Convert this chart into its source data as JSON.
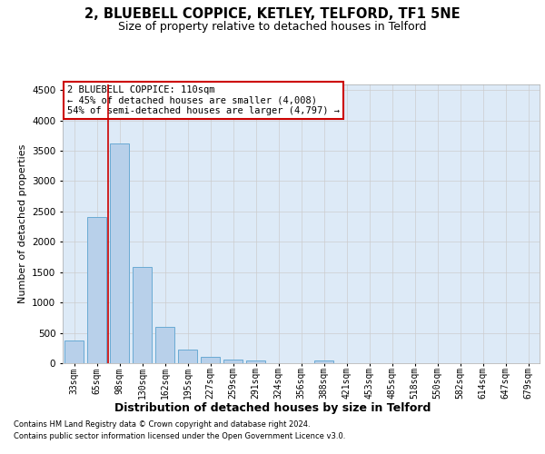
{
  "title_line1": "2, BLUEBELL COPPICE, KETLEY, TELFORD, TF1 5NE",
  "title_line2": "Size of property relative to detached houses in Telford",
  "xlabel": "Distribution of detached houses by size in Telford",
  "ylabel": "Number of detached properties",
  "categories": [
    "33sqm",
    "65sqm",
    "98sqm",
    "130sqm",
    "162sqm",
    "195sqm",
    "227sqm",
    "259sqm",
    "291sqm",
    "324sqm",
    "356sqm",
    "388sqm",
    "421sqm",
    "453sqm",
    "485sqm",
    "518sqm",
    "550sqm",
    "582sqm",
    "614sqm",
    "647sqm",
    "679sqm"
  ],
  "values": [
    370,
    2410,
    3620,
    1580,
    600,
    225,
    110,
    65,
    45,
    0,
    0,
    50,
    0,
    0,
    0,
    0,
    0,
    0,
    0,
    0,
    0
  ],
  "bar_color": "#b8d0ea",
  "bar_edgecolor": "#6aaad4",
  "vline_color": "#cc0000",
  "vline_xindex": 2,
  "annotation_line1": "2 BLUEBELL COPPICE: 110sqm",
  "annotation_line2": "← 45% of detached houses are smaller (4,008)",
  "annotation_line3": "54% of semi-detached houses are larger (4,797) →",
  "annotation_box_edgecolor": "#cc0000",
  "annotation_box_facecolor": "#ffffff",
  "ylim": [
    0,
    4600
  ],
  "yticks": [
    0,
    500,
    1000,
    1500,
    2000,
    2500,
    3000,
    3500,
    4000,
    4500
  ],
  "grid_color": "#cccccc",
  "bg_color": "#ddeaf7",
  "footer_line1": "Contains HM Land Registry data © Crown copyright and database right 2024.",
  "footer_line2": "Contains public sector information licensed under the Open Government Licence v3.0.",
  "title1_fontsize": 10.5,
  "title2_fontsize": 9,
  "xlabel_fontsize": 9,
  "ylabel_fontsize": 8,
  "tick_fontsize": 7,
  "annotation_fontsize": 7.5,
  "footer_fontsize": 6
}
